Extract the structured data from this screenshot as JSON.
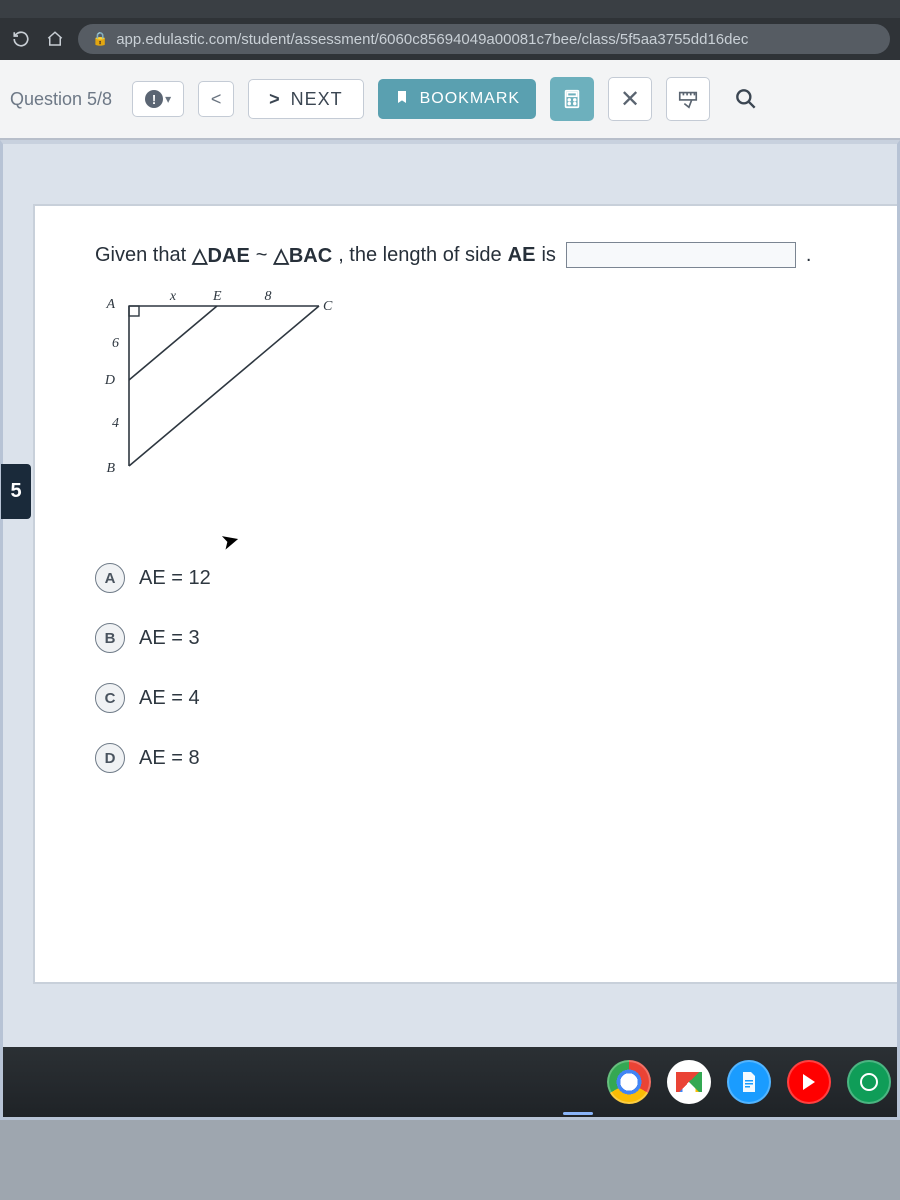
{
  "browser": {
    "url": "app.edulastic.com/student/assessment/6060c85694049a00081c7bee/class/5f5aa3755dd16dec"
  },
  "toolbar": {
    "question_label": "Question 5/8",
    "next_label": "NEXT",
    "bookmark_label": "BOOKMARK"
  },
  "sidebar": {
    "tab_number": "5"
  },
  "question": {
    "prefix": "Given that ",
    "triangle1": "△DAE",
    "similar": " ~ ",
    "triangle2": "△BAC",
    "middle": ", the length of side ",
    "segment": "AE",
    "suffix1": " is",
    "period": "."
  },
  "diagram": {
    "A": "A",
    "B": "B",
    "C": "C",
    "D": "D",
    "E": "E",
    "AD": "6",
    "DB": "4",
    "x": "x",
    "EC": "8",
    "stroke": "#2e3740",
    "font": "italic 13px serif"
  },
  "choices": [
    {
      "letter": "A",
      "text": "AE = 12"
    },
    {
      "letter": "B",
      "text": "AE = 3"
    },
    {
      "letter": "C",
      "text": "AE = 4"
    },
    {
      "letter": "D",
      "text": "AE = 8"
    }
  ],
  "colors": {
    "toolbar_bg": "#f3f4f5",
    "bookmark_bg": "#5aa0b0",
    "panel_bg": "#ffffff",
    "content_bg": "#dbe2eb"
  }
}
